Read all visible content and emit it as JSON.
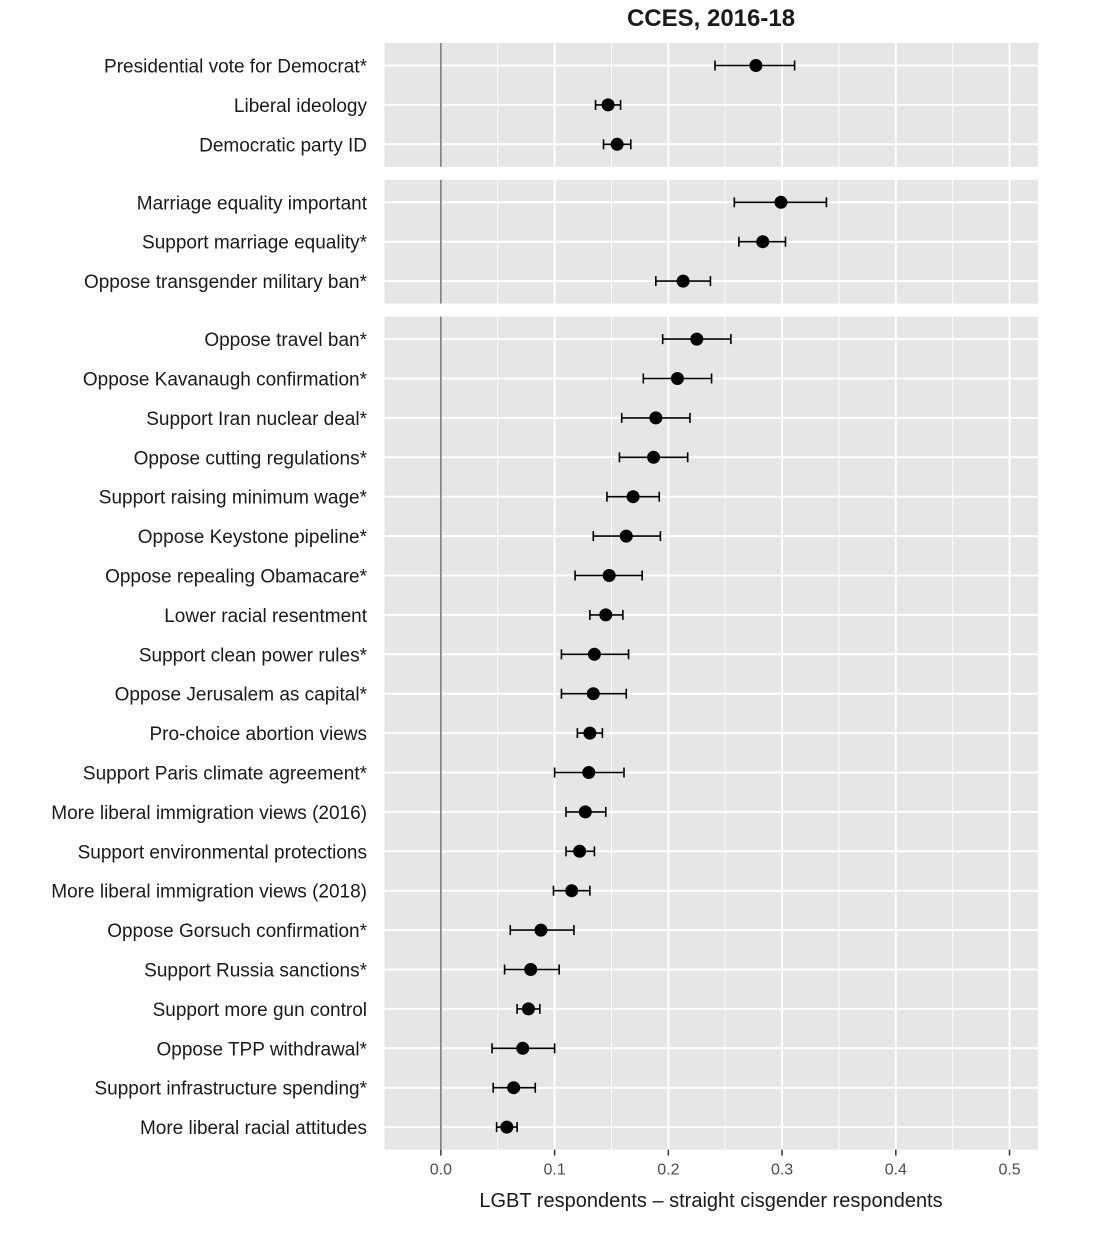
{
  "chart_data": {
    "type": "dot-errorbar",
    "title": "CCES, 2016-18",
    "xlabel": "LGBT respondents – straight cisgender respondents",
    "ylabel": "",
    "xlim": [
      -0.05,
      0.525
    ],
    "x_ticks": [
      0.0,
      0.1,
      0.2,
      0.3,
      0.4,
      0.5
    ],
    "x_tick_labels": [
      "0.0",
      "0.1",
      "0.2",
      "0.3",
      "0.4",
      "0.5"
    ],
    "grid": true,
    "reference_line": 0.0,
    "panels": [
      {
        "items": [
          {
            "label": "Presidential vote for Democrat*",
            "estimate": 0.277,
            "ci": [
              0.241,
              0.311
            ]
          },
          {
            "label": "Liberal ideology",
            "estimate": 0.147,
            "ci": [
              0.136,
              0.158
            ]
          },
          {
            "label": "Democratic party ID",
            "estimate": 0.155,
            "ci": [
              0.143,
              0.167
            ]
          }
        ]
      },
      {
        "items": [
          {
            "label": "Marriage equality important",
            "estimate": 0.299,
            "ci": [
              0.258,
              0.339
            ]
          },
          {
            "label": "Support marriage equality*",
            "estimate": 0.283,
            "ci": [
              0.262,
              0.303
            ]
          },
          {
            "label": "Oppose transgender military ban*",
            "estimate": 0.213,
            "ci": [
              0.189,
              0.237
            ]
          }
        ]
      },
      {
        "items": [
          {
            "label": "Oppose travel ban*",
            "estimate": 0.225,
            "ci": [
              0.195,
              0.255
            ]
          },
          {
            "label": "Oppose Kavanaugh confirmation*",
            "estimate": 0.208,
            "ci": [
              0.178,
              0.238
            ]
          },
          {
            "label": "Support Iran nuclear deal*",
            "estimate": 0.189,
            "ci": [
              0.159,
              0.219
            ]
          },
          {
            "label": "Oppose cutting regulations*",
            "estimate": 0.187,
            "ci": [
              0.157,
              0.217
            ]
          },
          {
            "label": "Support raising minimum wage*",
            "estimate": 0.169,
            "ci": [
              0.146,
              0.192
            ]
          },
          {
            "label": "Oppose Keystone pipeline*",
            "estimate": 0.163,
            "ci": [
              0.134,
              0.193
            ]
          },
          {
            "label": "Oppose repealing Obamacare*",
            "estimate": 0.148,
            "ci": [
              0.118,
              0.177
            ]
          },
          {
            "label": "Lower racial resentment",
            "estimate": 0.145,
            "ci": [
              0.131,
              0.16
            ]
          },
          {
            "label": "Support clean power rules*",
            "estimate": 0.135,
            "ci": [
              0.106,
              0.165
            ]
          },
          {
            "label": "Oppose Jerusalem as capital*",
            "estimate": 0.134,
            "ci": [
              0.106,
              0.163
            ]
          },
          {
            "label": "Pro-choice abortion views",
            "estimate": 0.131,
            "ci": [
              0.12,
              0.142
            ]
          },
          {
            "label": "Support Paris climate agreement*",
            "estimate": 0.13,
            "ci": [
              0.1,
              0.161
            ]
          },
          {
            "label": "More liberal immigration views (2016)",
            "estimate": 0.127,
            "ci": [
              0.11,
              0.145
            ]
          },
          {
            "label": "Support environmental protections",
            "estimate": 0.122,
            "ci": [
              0.11,
              0.135
            ]
          },
          {
            "label": "More liberal immigration views (2018)",
            "estimate": 0.115,
            "ci": [
              0.099,
              0.131
            ]
          },
          {
            "label": "Oppose Gorsuch confirmation*",
            "estimate": 0.088,
            "ci": [
              0.061,
              0.117
            ]
          },
          {
            "label": "Support Russia sanctions*",
            "estimate": 0.079,
            "ci": [
              0.056,
              0.104
            ]
          },
          {
            "label": "Support more gun control",
            "estimate": 0.077,
            "ci": [
              0.067,
              0.087
            ]
          },
          {
            "label": "Oppose TPP withdrawal*",
            "estimate": 0.072,
            "ci": [
              0.045,
              0.1
            ]
          },
          {
            "label": "Support infrastructure spending*",
            "estimate": 0.064,
            "ci": [
              0.046,
              0.083
            ]
          },
          {
            "label": "More liberal racial attitudes",
            "estimate": 0.058,
            "ci": [
              0.049,
              0.067
            ]
          }
        ]
      }
    ],
    "colors": {
      "panel_background": "#e6e6e6",
      "grid": "#ffffff",
      "reference_line": "#7a7a7a",
      "point": "#000000",
      "text": "#1a1a1a"
    }
  }
}
